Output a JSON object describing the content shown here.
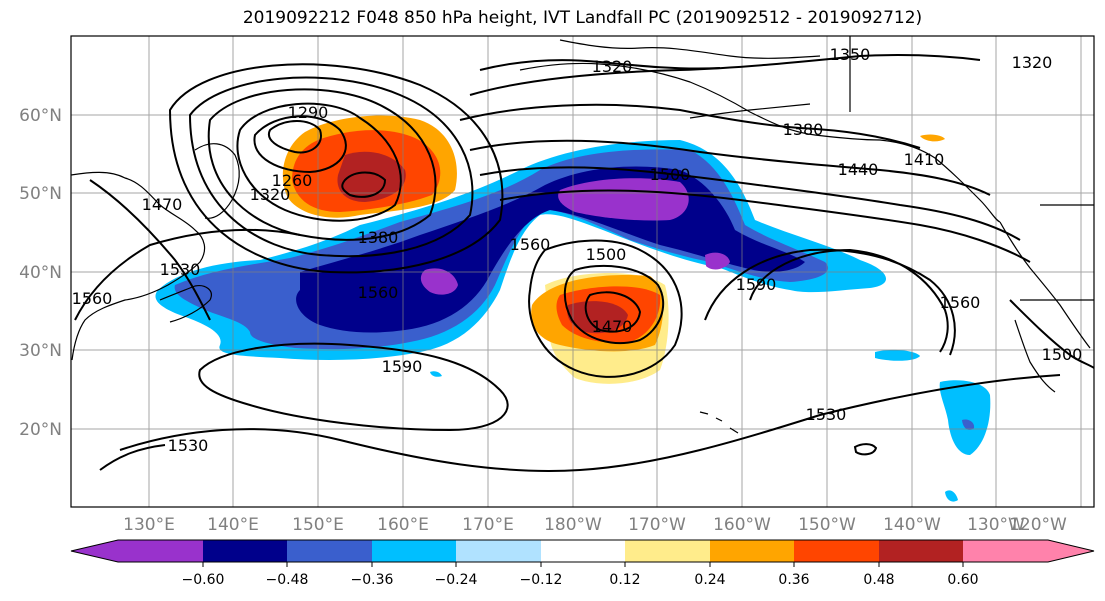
{
  "title": "2019092212 F048 850 hPa height, IVT Landfall PC (2019092512 - 2019092712)",
  "map": {
    "lat_labels": [
      "60°N",
      "50°N",
      "40°N",
      "30°N",
      "20°N"
    ],
    "lon_labels": [
      "130°E",
      "140°E",
      "150°E",
      "160°E",
      "170°E",
      "180°W",
      "170°W",
      "160°W",
      "150°W",
      "140°W",
      "130°W",
      "120°W"
    ],
    "contour_labels": [
      "1320",
      "1350",
      "1320",
      "1290",
      "1260",
      "1320",
      "1470",
      "1530",
      "1560",
      "1380",
      "1380",
      "1440",
      "1410",
      "1500",
      "1560",
      "1500",
      "1560",
      "1590",
      "1470",
      "1590",
      "1560",
      "1500",
      "1530",
      "1530"
    ],
    "colors": {
      "contour": "#000000",
      "grid": "#808080",
      "coast": "#000000"
    }
  },
  "colorbar": {
    "ticks": [
      "−0.60",
      "−0.48",
      "−0.36",
      "−0.24",
      "−0.12",
      "0.12",
      "0.24",
      "0.36",
      "0.48",
      "0.60"
    ],
    "colors": [
      "#9932cc",
      "#00008b",
      "#3a5fcd",
      "#00bfff",
      "#b0e2ff",
      "#ffffff",
      "#ffec8b",
      "#ffa500",
      "#ff4500",
      "#b22222",
      "#ff82ab"
    ]
  }
}
